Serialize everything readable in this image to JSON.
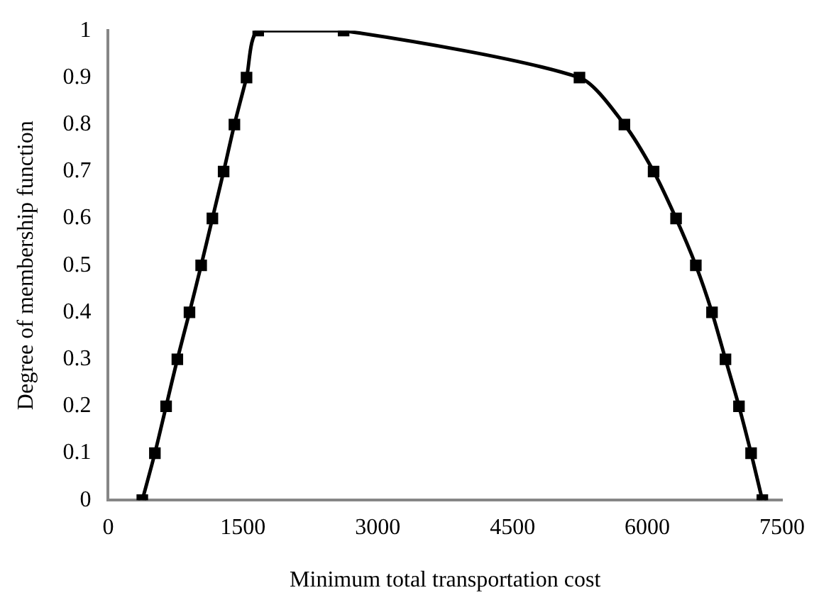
{
  "chart_data": {
    "type": "line",
    "xlabel": "Minimum total transportation cost",
    "ylabel": "Degree of membership function",
    "x": [
      380,
      520,
      645,
      770,
      905,
      1035,
      1160,
      1285,
      1405,
      1540,
      1670,
      2620,
      5245,
      5745,
      6070,
      6320,
      6540,
      6720,
      6870,
      7020,
      7155,
      7280
    ],
    "series": [
      {
        "color": "#000000",
        "values": [
          0,
          0.1,
          0.2,
          0.3,
          0.4,
          0.5,
          0.6,
          0.7,
          0.8,
          0.9,
          1,
          1,
          0.9,
          0.8,
          0.7,
          0.6,
          0.5,
          0.4,
          0.3,
          0.2,
          0.1,
          0
        ]
      }
    ],
    "xlim": [
      0,
      7500
    ],
    "xticks": [
      0,
      1500,
      3000,
      4500,
      6000,
      7500
    ],
    "ylim": [
      0,
      1
    ],
    "yticks": [
      0,
      0.1,
      0.2,
      0.3,
      0.4,
      0.5,
      0.6,
      0.7,
      0.8,
      0.9,
      1
    ],
    "grid": false,
    "legend": false,
    "marker": "square",
    "line_style": "solid"
  }
}
